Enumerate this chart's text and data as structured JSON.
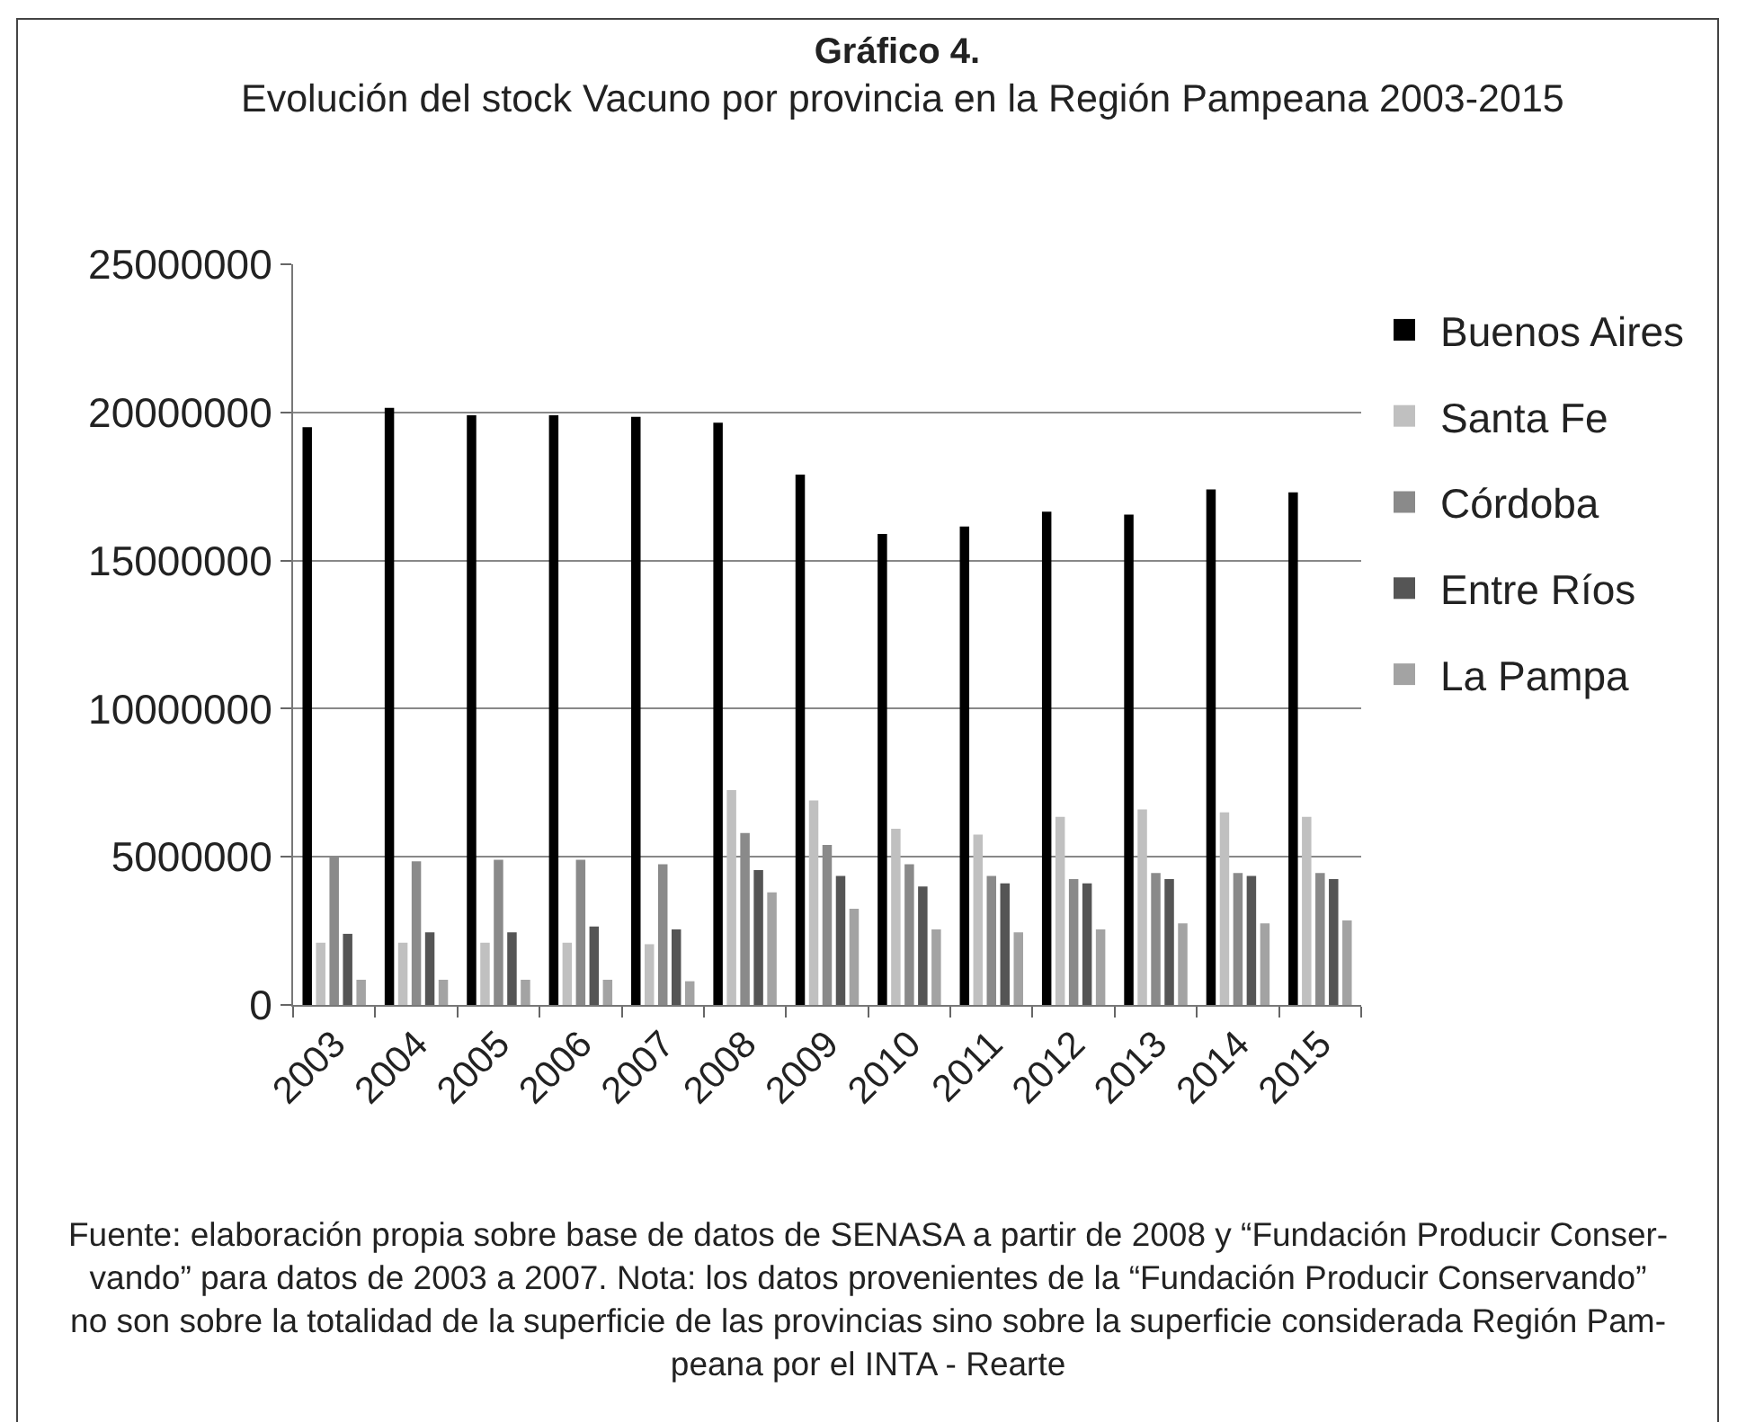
{
  "chart_data": {
    "type": "bar",
    "title": "Gráfico 4.",
    "subtitle": "Evolución del stock Vacuno por provincia en la Región Pampeana 2003-2015",
    "categories": [
      "2003",
      "2004",
      "2005",
      "2006",
      "2007",
      "2008",
      "2009",
      "2010",
      "2011",
      "2012",
      "2013",
      "2014",
      "2015"
    ],
    "series": [
      {
        "name": "Buenos Aires",
        "color": "#000000",
        "values": [
          19500000,
          20150000,
          19900000,
          19900000,
          19850000,
          19650000,
          17900000,
          15900000,
          16150000,
          16650000,
          16550000,
          17400000,
          17300000
        ]
      },
      {
        "name": "Santa Fe",
        "color": "#c0c0c0",
        "values": [
          2100000,
          2100000,
          2100000,
          2100000,
          2050000,
          7250000,
          6900000,
          5950000,
          5750000,
          6350000,
          6600000,
          6500000,
          6350000
        ]
      },
      {
        "name": "Córdoba",
        "color": "#8a8a8a",
        "values": [
          5000000,
          4850000,
          4900000,
          4900000,
          4750000,
          5800000,
          5400000,
          4750000,
          4350000,
          4250000,
          4450000,
          4450000,
          4450000
        ]
      },
      {
        "name": "Entre Ríos",
        "color": "#555555",
        "values": [
          2400000,
          2450000,
          2450000,
          2650000,
          2550000,
          4550000,
          4350000,
          4000000,
          4100000,
          4100000,
          4250000,
          4350000,
          4250000
        ]
      },
      {
        "name": "La Pampa",
        "color": "#a3a3a3",
        "values": [
          850000,
          850000,
          850000,
          850000,
          800000,
          3800000,
          3250000,
          2550000,
          2450000,
          2550000,
          2750000,
          2750000,
          2850000
        ]
      }
    ],
    "ylim": [
      0,
      25000000
    ],
    "yticks": [
      0,
      5000000,
      10000000,
      15000000,
      20000000,
      25000000
    ],
    "grid": "y",
    "legend": "right",
    "annotations": [
      "Fuente: elaboración propia sobre base de datos de SENASA a partir de 2008 y “Fundación Producir Conser-\nvando” para datos de 2003 a 2007. Nota: los datos provenientes de la “Fundación Producir Conservando”\nno son sobre la totalidad de la superficie de las provincias sino sobre la superficie considerada Región Pam-\npeana por el INTA - Rearte"
    ]
  }
}
